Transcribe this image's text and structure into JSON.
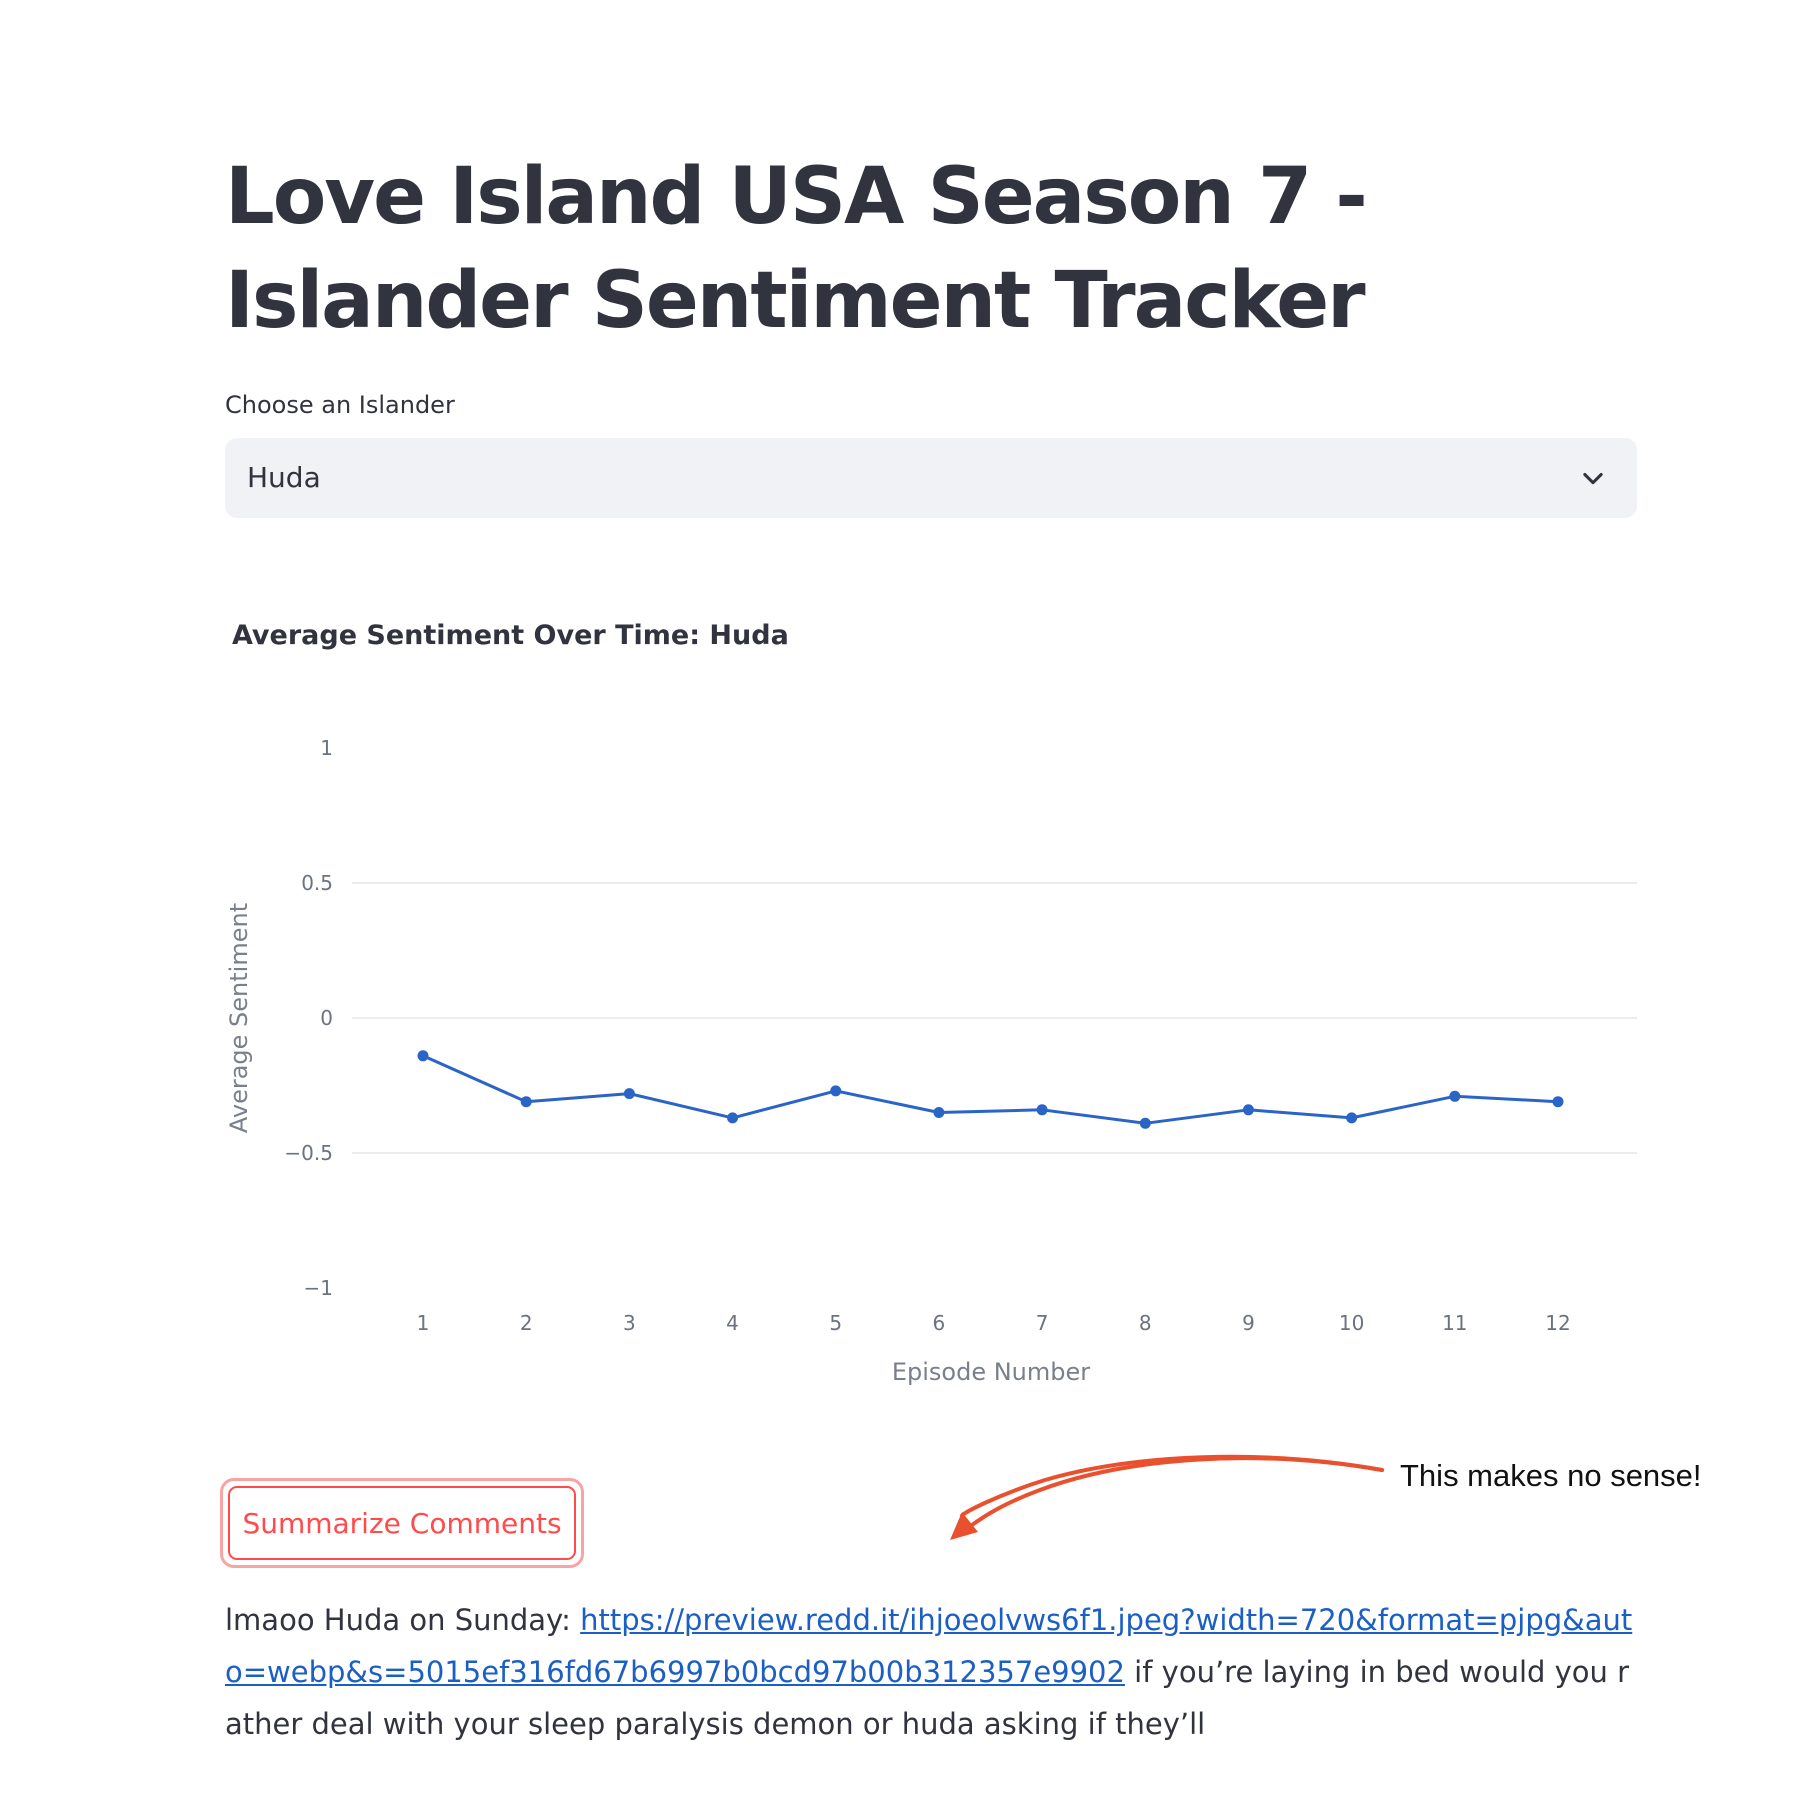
{
  "page": {
    "title": "Love Island USA Season 7 - Islander Sentiment Tracker"
  },
  "select": {
    "label": "Choose an Islander",
    "value": "Huda",
    "icon": "chevron-down-icon"
  },
  "chart": {
    "title": "Average Sentiment Over Time: Huda"
  },
  "chart_data": {
    "type": "line",
    "title": "Average Sentiment Over Time: Huda",
    "xlabel": "Episode Number",
    "ylabel": "Average Sentiment",
    "x": [
      1,
      2,
      3,
      4,
      5,
      6,
      7,
      8,
      9,
      10,
      11,
      12
    ],
    "y": [
      -0.14,
      -0.31,
      -0.28,
      -0.37,
      -0.27,
      -0.35,
      -0.34,
      -0.39,
      -0.34,
      -0.37,
      -0.29,
      -0.31
    ],
    "ylim": [
      -1,
      1
    ],
    "yticks": [
      1,
      0.5,
      0,
      -0.5,
      -1
    ],
    "ytick_labels": [
      "1",
      "0.5",
      "0",
      "−0.5",
      "−1"
    ],
    "xticks": [
      1,
      2,
      3,
      4,
      5,
      6,
      7,
      8,
      9,
      10,
      11,
      12
    ],
    "grid": true,
    "line_color": "#2b64c7"
  },
  "actions": {
    "summarize_label": "Summarize Comments"
  },
  "annotation": {
    "text": "This makes no sense!",
    "color": "#e8502e"
  },
  "comment": {
    "prefix": "lmaoo Huda on Sunday: ",
    "link": "https://preview.redd.it/ihjoeolvws6f1.jpeg?width=720&format=pjpg&auto=webp&s=5015ef316fd67b6997b0bcd97b00b312357e9902",
    "suffix": " if you’re laying in bed would you rather deal with your sleep paralysis demon or huda asking if they’ll"
  }
}
